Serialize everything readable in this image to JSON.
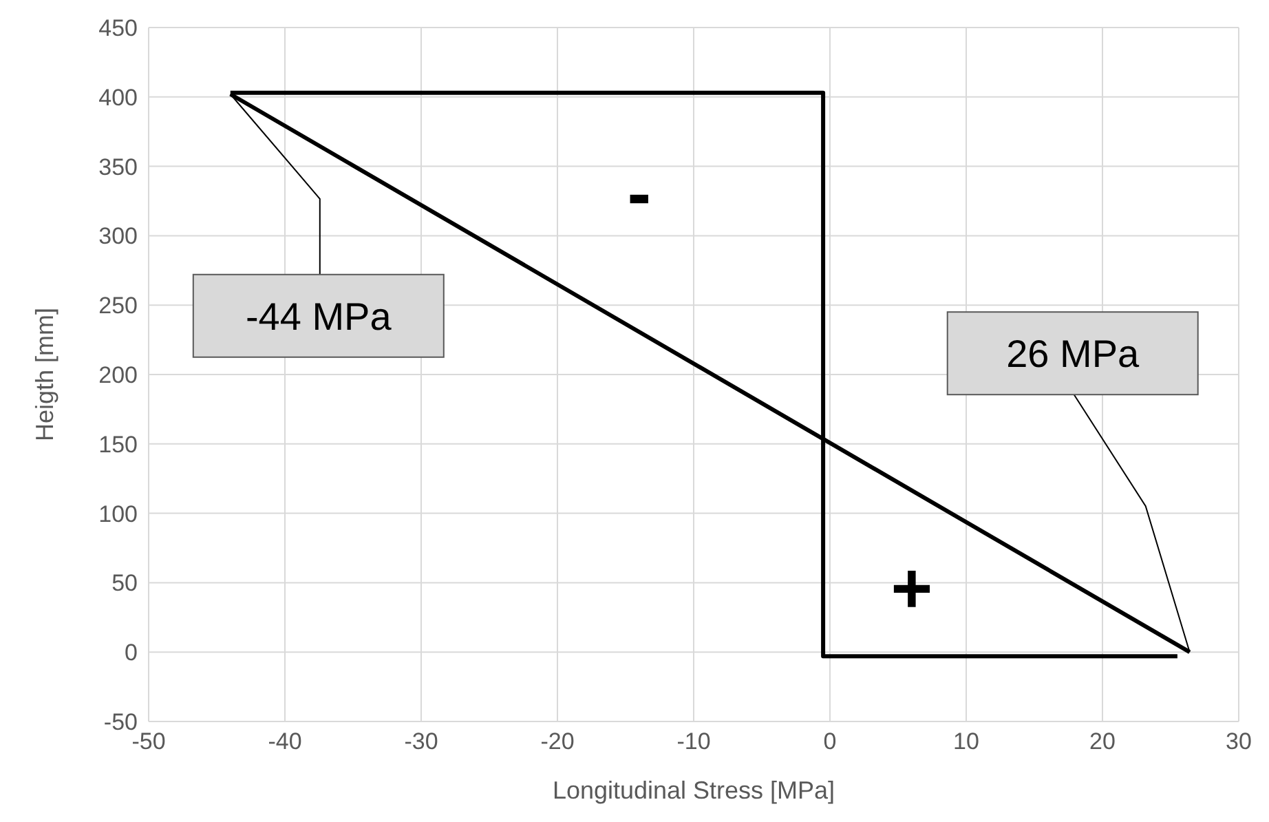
{
  "chart_data": {
    "type": "line",
    "xlabel": "Longitudinal Stress [MPa]",
    "ylabel": "Heigth [mm]",
    "xlim": [
      -50,
      30
    ],
    "xticks": [
      -50,
      -40,
      -30,
      -20,
      -10,
      0,
      10,
      20,
      30
    ],
    "ylim": [
      -50,
      450
    ],
    "yticks": [
      -50,
      0,
      50,
      100,
      150,
      200,
      250,
      300,
      350,
      400,
      450
    ],
    "grid": true,
    "marker": "none",
    "line_style": "solid",
    "series": [
      {
        "color": "#000000",
        "x": [
          -44,
          26.4
        ],
        "values": [
          402,
          0
        ]
      },
      {
        "color": "#000000",
        "x": [
          -44,
          -0.5,
          -0.5,
          25.5
        ],
        "values": [
          403,
          403,
          -3,
          -3
        ]
      }
    ],
    "annotations": [
      {
        "text": "-44 MPa",
        "x": -44,
        "y": 402
      },
      {
        "text": "26 MPa",
        "x": 26.4,
        "y": 0
      },
      "-",
      "+"
    ]
  }
}
